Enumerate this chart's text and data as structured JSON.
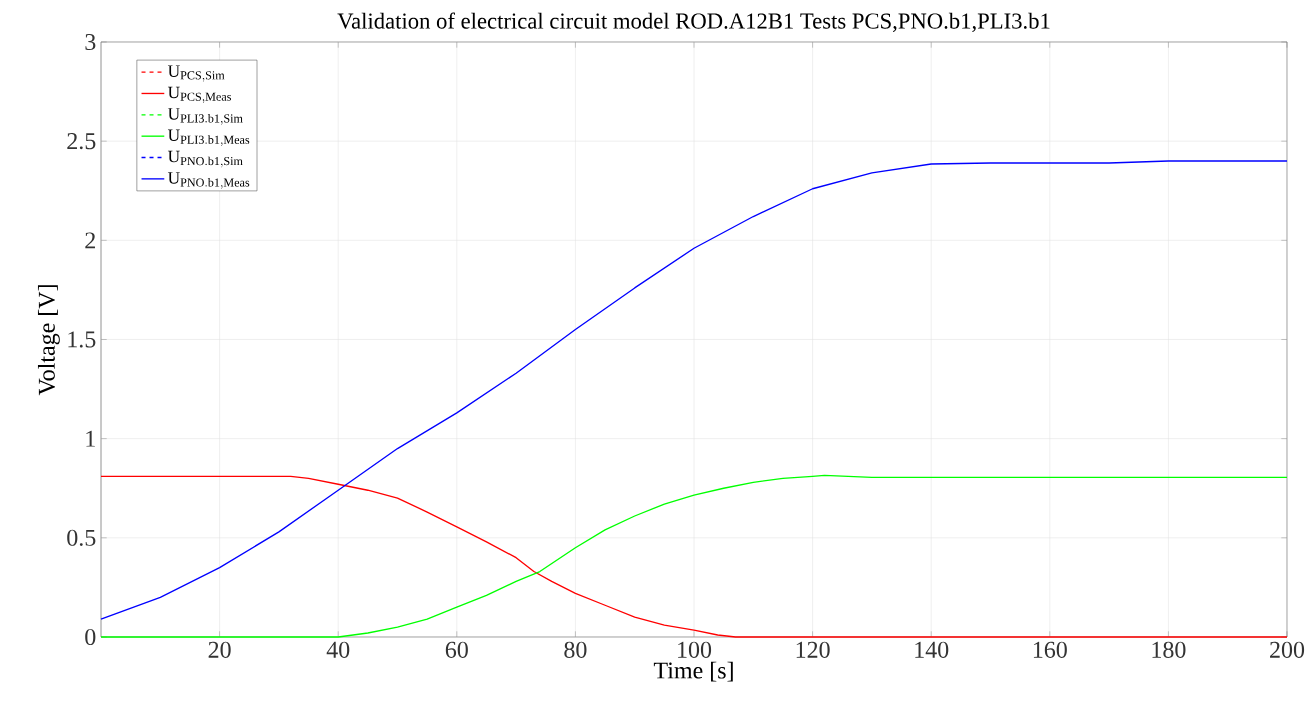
{
  "chart_data": {
    "type": "line",
    "title": "Validation of electrical circuit model ROD.A12B1 Tests PCS,PNO.b1,PLI3.b1",
    "xlabel": "Time [s]",
    "ylabel": "Voltage [V]",
    "xlim": [
      0,
      200
    ],
    "ylim": [
      0,
      3
    ],
    "xticks": [
      20,
      40,
      60,
      80,
      100,
      120,
      140,
      160,
      180,
      200
    ],
    "yticks": [
      0,
      0.5,
      1,
      1.5,
      2,
      2.5,
      3
    ],
    "grid": true,
    "legend": "top left",
    "marker": "none",
    "series": [
      {
        "name": "\\mathrm{U}_{\\mathrm{PCS,Sim}}",
        "color": "#ff0000",
        "line_style": "dashed"
      },
      {
        "name": "\\mathrm{U}_{\\mathrm{PCS,Meas}}",
        "color": "#ff0000",
        "line_style": "solid",
        "x": [
          0,
          10,
          20,
          30,
          32,
          35,
          40,
          45,
          50,
          55,
          60,
          65,
          70,
          73,
          76,
          80,
          85,
          90,
          95,
          100,
          104,
          107,
          120,
          140,
          160,
          180,
          200
        ],
        "values": [
          0.81,
          0.81,
          0.81,
          0.81,
          0.81,
          0.8,
          0.77,
          0.74,
          0.7,
          0.63,
          0.555,
          0.48,
          0.4,
          0.33,
          0.28,
          0.22,
          0.16,
          0.1,
          0.06,
          0.035,
          0.01,
          0,
          0,
          0,
          0,
          0,
          0
        ]
      },
      {
        "name": "\\mathrm{U}_{\\mathrm{PLI3.b1,Sim}}",
        "color": "#00ff00",
        "line_style": "dashed"
      },
      {
        "name": "\\mathrm{U}_{\\mathrm{PLI3.b1,Meas}}",
        "color": "#00ff00",
        "line_style": "solid",
        "x": [
          0,
          10,
          20,
          30,
          40,
          45,
          50,
          55,
          60,
          65,
          70,
          74,
          80,
          85,
          90,
          95,
          100,
          105,
          110,
          115,
          120,
          122,
          130,
          140,
          160,
          180,
          200
        ],
        "values": [
          0,
          0,
          0,
          0,
          0,
          0.02,
          0.05,
          0.09,
          0.15,
          0.21,
          0.28,
          0.33,
          0.45,
          0.54,
          0.61,
          0.67,
          0.715,
          0.75,
          0.78,
          0.8,
          0.81,
          0.815,
          0.805,
          0.805,
          0.805,
          0.805,
          0.805
        ]
      },
      {
        "name": "\\mathrm{U}_{\\mathrm{PNO.b1,Sim}}",
        "color": "#0000ff",
        "line_style": "dashed"
      },
      {
        "name": "\\mathrm{U}_{\\mathrm{PNO.b1,Meas}}",
        "color": "#0000ff",
        "line_style": "solid",
        "x": [
          0,
          10,
          20,
          30,
          40,
          50,
          60,
          70,
          80,
          90,
          100,
          110,
          120,
          130,
          140,
          150,
          160,
          170,
          180,
          190,
          200
        ],
        "values": [
          0.09,
          0.2,
          0.35,
          0.53,
          0.74,
          0.95,
          1.13,
          1.33,
          1.55,
          1.76,
          1.96,
          2.12,
          2.26,
          2.34,
          2.385,
          2.39,
          2.39,
          2.39,
          2.4,
          2.4,
          2.4
        ]
      }
    ]
  }
}
